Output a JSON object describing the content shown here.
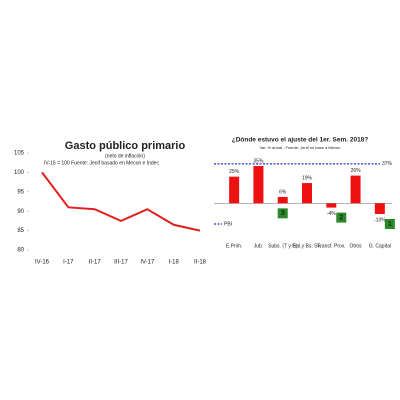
{
  "chart_data": [
    {
      "type": "line",
      "title": "Gasto público primario",
      "subtitle": "(neto de inflación)",
      "note": "IV-16 = 100 Fuente: Jenif basado en Mecon e Indec",
      "categories": [
        "IV-16",
        "I-17",
        "II-17",
        "III-17",
        "IV-17",
        "I-18",
        "II-18"
      ],
      "values": [
        100,
        91,
        90.5,
        87.5,
        90.5,
        86.5,
        85
      ],
      "color": "#e02020",
      "ylim": [
        80,
        105
      ],
      "yticks": [
        80,
        85,
        90,
        95,
        100,
        105
      ]
    },
    {
      "type": "bar",
      "title": "¿Dónde estuvo el ajuste del 1er. Sem. 2018?",
      "subtitle": "Var. % anual - Fuente: Jenif en base a Mecon",
      "categories": [
        "E.Prim.",
        "Jub.",
        "Subs. (T y E)",
        "Sal.y Bs. Sv.",
        "Transf. Prov.",
        "Otros",
        "G. Capital"
      ],
      "values": [
        25,
        35,
        6,
        19,
        -4,
        26,
        -10
      ],
      "value_labels": [
        "25%",
        "35%",
        "6%",
        "19%",
        "-4%",
        "26%",
        "-10%"
      ],
      "rank_labels": [
        null,
        null,
        "3",
        null,
        "2",
        null,
        "1"
      ],
      "color": "#ee1111",
      "ylim": [
        -25,
        50
      ],
      "reference": {
        "name": "PBI",
        "value": 37,
        "label": "37%",
        "color": "#2233cc"
      }
    }
  ]
}
